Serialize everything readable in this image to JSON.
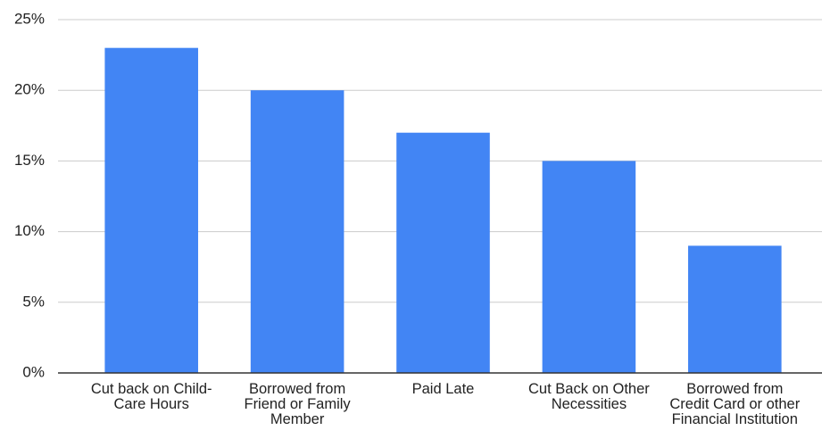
{
  "chart_data": {
    "type": "bar",
    "categories": [
      "Cut back on Child-Care Hours",
      "Borrowed from Friend or Family Member",
      "Paid Late",
      "Cut Back on Other Necessities",
      "Borrowed from Credit Card or other Financial Institution"
    ],
    "values": [
      23,
      20,
      17,
      15,
      9
    ],
    "color": "#4285f4",
    "ylim": [
      0,
      25
    ],
    "yticks": [
      {
        "value": 0,
        "label": "0%"
      },
      {
        "value": 5,
        "label": "5%"
      },
      {
        "value": 10,
        "label": "10%"
      },
      {
        "value": 15,
        "label": "15%"
      },
      {
        "value": 20,
        "label": "20%"
      },
      {
        "value": 25,
        "label": "25%"
      }
    ],
    "grid": true
  }
}
